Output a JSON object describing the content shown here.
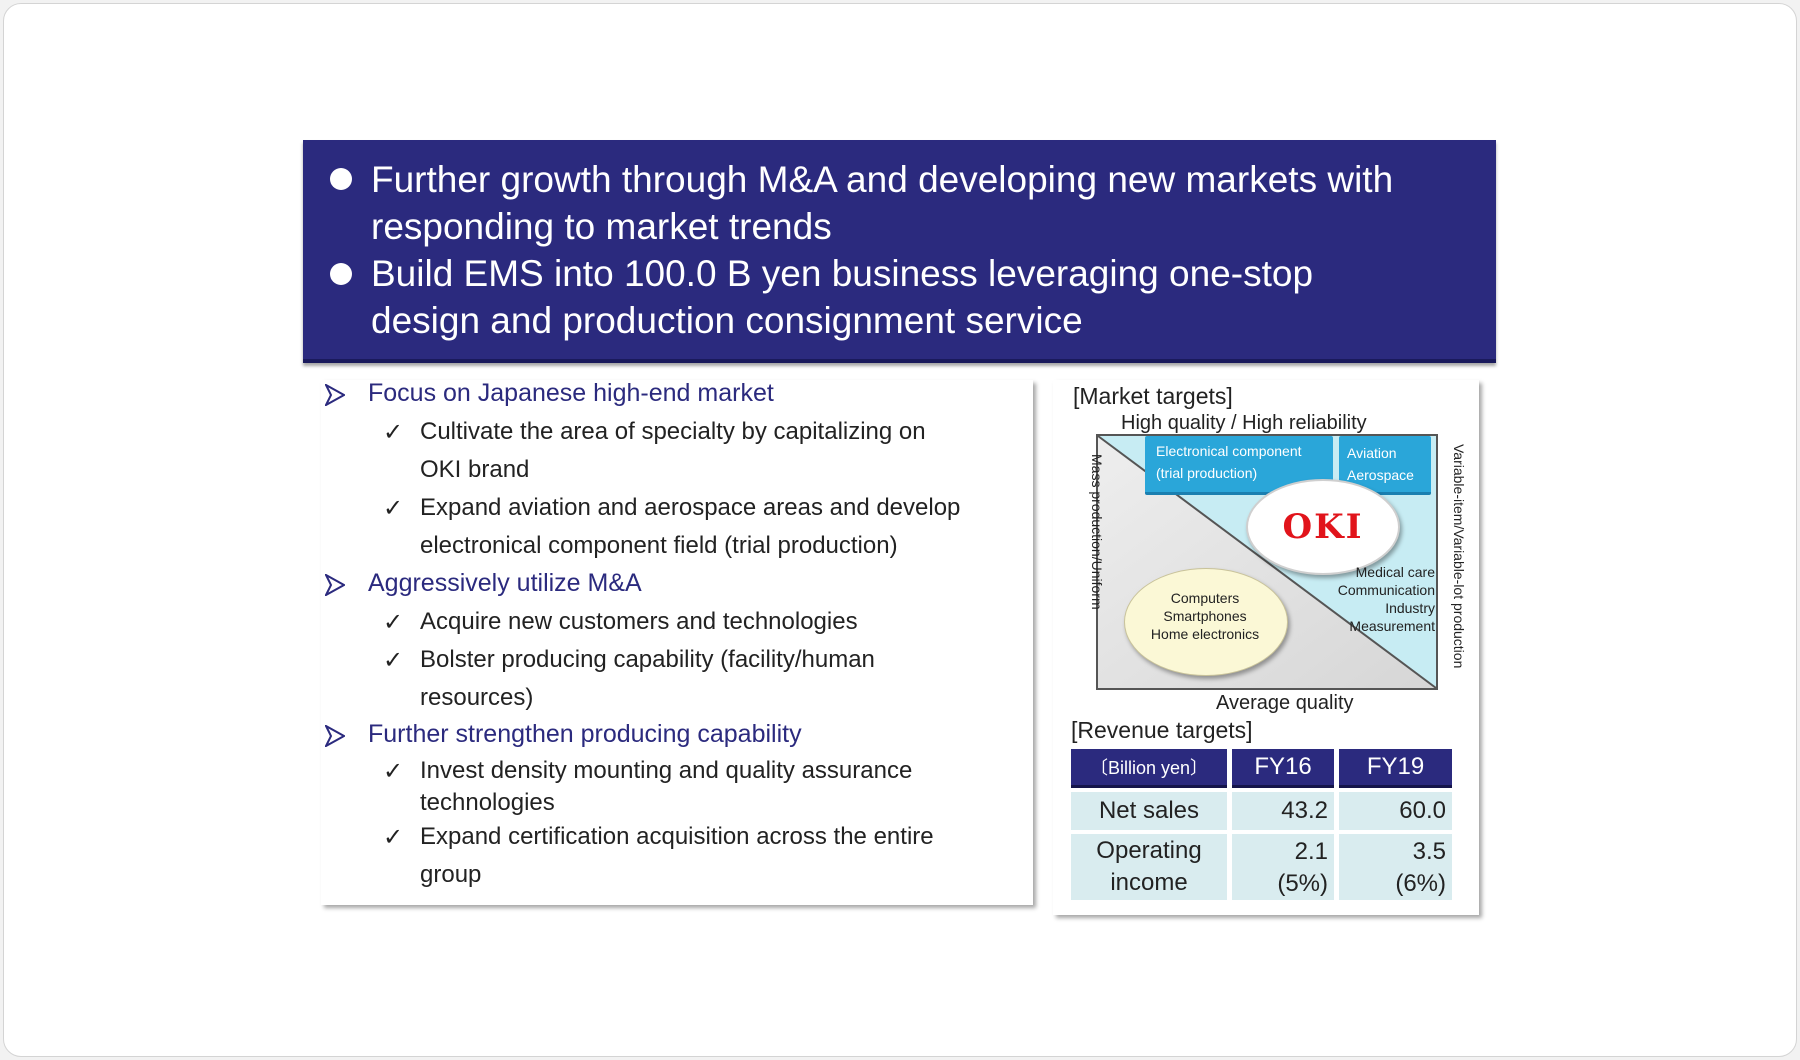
{
  "banner": {
    "bullet1_line1": "Further growth through M&A and developing new markets with",
    "bullet1_line2": "responding to market trends",
    "bullet2_line1": "Build EMS into 100.0 B yen business leveraging one-stop",
    "bullet2_line2": "design and production consignment service"
  },
  "left": {
    "h1": "Focus on Japanese high-end market",
    "h1_items": [
      {
        "line1": "Cultivate the area of specialty by capitalizing on",
        "line2": "OKI brand"
      },
      {
        "line1": "Expand aviation and aerospace areas and develop",
        "line2": "electronical component field (trial production)"
      }
    ],
    "h2": "Aggressively utilize M&A",
    "h2_items": [
      {
        "line1": "Acquire new customers and technologies",
        "line2": ""
      },
      {
        "line1": "Bolster producing capability (facility/human",
        "line2": "resources)"
      }
    ],
    "h3": "Further strengthen producing capability",
    "h3_items": [
      {
        "line1": "Invest density mounting and quality assurance",
        "line2": "technologies"
      },
      {
        "line1": "Expand  certification acquisition across the entire",
        "line2": "group"
      }
    ],
    "arrow_icon": "arrowhead-bullet",
    "check_icon": "check-mark",
    "check_glyph": "✓"
  },
  "market": {
    "title": "[Market targets]",
    "top_label": "High quality / High reliability",
    "bottom_label": "Average quality",
    "left_vlabel": "Mass production/Uniform",
    "right_vlabel": "Variable-item/Variable-lot production",
    "box1_line1": "Electronical component",
    "box1_line2": "(trial production)",
    "box2_line1": "Aviation",
    "box2_line2": "Aerospace",
    "logo": "OKI",
    "right_list": [
      "Medical care",
      "Communication",
      "Industry",
      "Measurement"
    ],
    "ellipse_list": [
      "Computers",
      "Smartphones",
      "Home electronics"
    ]
  },
  "revenue": {
    "title": "[Revenue targets]",
    "unit": "〔Billion yen〕",
    "col1": "FY16",
    "col2": "FY19",
    "row1_label": "Net sales",
    "row1_v1": "43.2",
    "row1_v2": "60.0",
    "row2_label_line1": "Operating",
    "row2_label_line2": "income",
    "row2_v1_line1": "2.1",
    "row2_v1_line2": "(5%)",
    "row2_v2_line1": "3.5",
    "row2_v2_line2": "(6%)"
  },
  "colors": {
    "navy": "#2b2a7e",
    "light_cyan": "#c7ecf3",
    "accent_blue": "#2aa6d9",
    "oki_red": "#e1141b",
    "ellipse_fill": "#fbf8d6",
    "table_cell": "#d9ecef"
  }
}
